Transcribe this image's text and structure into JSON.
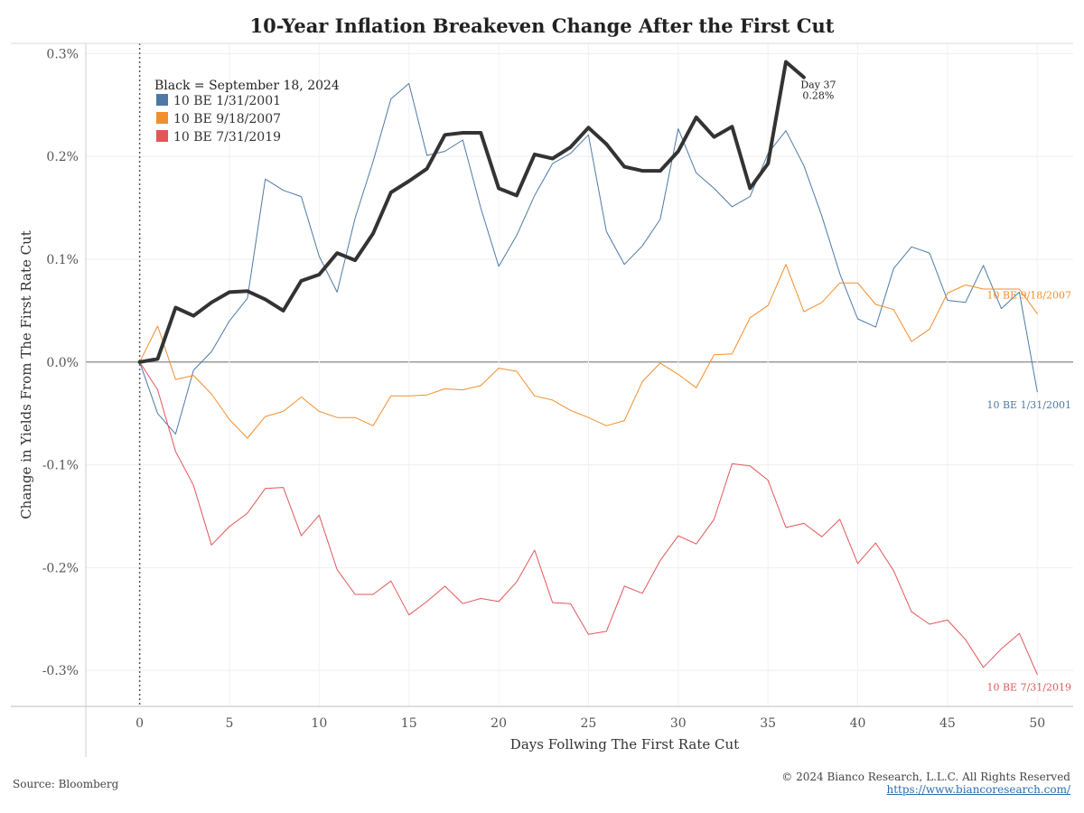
{
  "title": "10-Year Inflation Breakeven Change After the First Cut",
  "footer": {
    "source": "Source: Bloomberg",
    "copyright": "© 2024 Bianco Research, L.L.C. All Rights Reserved",
    "url": "https://www.biancoresearch.com/"
  },
  "chart_data": {
    "type": "line",
    "title": "10-Year Inflation Breakeven Change After the First Cut",
    "xlabel": "Days Follwing The First Rate Cut",
    "ylabel": "Change in Yields From The First Rate Cut",
    "xlim": [
      -3,
      52
    ],
    "ylim": [
      -0.335,
      0.31
    ],
    "xticks": [
      0,
      5,
      10,
      15,
      20,
      25,
      30,
      35,
      40,
      45,
      50
    ],
    "yticks": [
      -0.3,
      -0.2,
      -0.1,
      0.0,
      0.1,
      0.2,
      0.3
    ],
    "ytick_labels": [
      "-0.3%",
      "-0.2%",
      "-0.1%",
      "0.0%",
      "0.1%",
      "0.2%",
      "0.3%"
    ],
    "grid": true,
    "legend_title": "Black = September 18, 2024",
    "legend_position": "top-left",
    "annotation": {
      "lines": [
        "Day 37",
        "0.28%"
      ],
      "x": 37,
      "y": 0.277
    },
    "series": [
      {
        "name": "10 BE  1/31/2001",
        "end_label": "10 BE  1/31/2001",
        "color": "#4e79a7",
        "width": 1,
        "legend": true,
        "x": [
          0,
          1,
          2,
          3,
          4,
          5,
          6,
          7,
          8,
          9,
          10,
          11,
          12,
          13,
          14,
          15,
          16,
          17,
          18,
          19,
          20,
          21,
          22,
          23,
          24,
          25,
          26,
          27,
          28,
          29,
          30,
          31,
          32,
          33,
          34,
          35,
          36,
          37,
          38,
          39,
          40,
          41,
          42,
          43,
          44,
          45,
          46,
          47,
          48,
          49,
          50
        ],
        "values": [
          0,
          -0.05,
          -0.07,
          -0.008,
          0.01,
          0.04,
          0.062,
          0.178,
          0.167,
          0.161,
          0.103,
          0.068,
          0.14,
          0.195,
          0.256,
          0.271,
          0.201,
          0.205,
          0.216,
          0.15,
          0.093,
          0.123,
          0.162,
          0.193,
          0.203,
          0.221,
          0.127,
          0.095,
          0.113,
          0.139,
          0.227,
          0.184,
          0.169,
          0.151,
          0.161,
          0.203,
          0.225,
          0.191,
          0.142,
          0.086,
          0.042,
          0.034,
          0.091,
          0.112,
          0.106,
          0.06,
          0.058,
          0.094,
          0.052,
          0.068,
          -0.029
        ]
      },
      {
        "name": "10 BE  9/18/2007",
        "end_label": "10 BE  9/18/2007",
        "color": "#f28e2b",
        "width": 1,
        "legend": true,
        "x": [
          0,
          1,
          2,
          3,
          4,
          5,
          6,
          7,
          8,
          9,
          10,
          11,
          12,
          13,
          14,
          15,
          16,
          17,
          18,
          19,
          20,
          21,
          22,
          23,
          24,
          25,
          26,
          27,
          28,
          29,
          30,
          31,
          32,
          33,
          34,
          35,
          36,
          37,
          38,
          39,
          40,
          41,
          42,
          43,
          44,
          45,
          46,
          47,
          48,
          49,
          50
        ],
        "values": [
          0,
          0.035,
          -0.017,
          -0.013,
          -0.031,
          -0.056,
          -0.074,
          -0.053,
          -0.048,
          -0.034,
          -0.048,
          -0.054,
          -0.054,
          -0.062,
          -0.033,
          -0.033,
          -0.032,
          -0.026,
          -0.027,
          -0.023,
          -0.006,
          -0.009,
          -0.033,
          -0.037,
          -0.047,
          -0.054,
          -0.062,
          -0.057,
          -0.019,
          -0.001,
          -0.012,
          -0.025,
          0.007,
          0.008,
          0.043,
          0.055,
          0.095,
          0.049,
          0.058,
          0.077,
          0.077,
          0.056,
          0.051,
          0.02,
          0.032,
          0.067,
          0.075,
          0.071,
          0.071,
          0.071,
          0.047
        ]
      },
      {
        "name": "10 BE  7/31/2019",
        "end_label": "10 BE  7/31/2019",
        "color": "#e15759",
        "width": 1,
        "legend": true,
        "x": [
          0,
          1,
          2,
          3,
          4,
          5,
          6,
          7,
          8,
          9,
          10,
          11,
          12,
          13,
          14,
          15,
          16,
          17,
          18,
          19,
          20,
          21,
          22,
          23,
          24,
          25,
          26,
          27,
          28,
          29,
          30,
          31,
          32,
          33,
          34,
          35,
          36,
          37,
          38,
          39,
          40,
          41,
          42,
          43,
          44,
          45,
          46,
          47,
          48,
          49,
          50
        ],
        "values": [
          0,
          -0.027,
          -0.087,
          -0.12,
          -0.178,
          -0.16,
          -0.147,
          -0.123,
          -0.122,
          -0.169,
          -0.149,
          -0.202,
          -0.226,
          -0.226,
          -0.213,
          -0.246,
          -0.233,
          -0.218,
          -0.235,
          -0.23,
          -0.233,
          -0.214,
          -0.183,
          -0.234,
          -0.235,
          -0.265,
          -0.262,
          -0.218,
          -0.225,
          -0.193,
          -0.169,
          -0.177,
          -0.153,
          -0.099,
          -0.101,
          -0.115,
          -0.161,
          -0.157,
          -0.17,
          -0.153,
          -0.196,
          -0.176,
          -0.203,
          -0.243,
          -0.255,
          -0.251,
          -0.27,
          -0.297,
          -0.279,
          -0.264,
          -0.304
        ]
      },
      {
        "name": "",
        "color": "#333333",
        "width": 4,
        "legend": false,
        "x": [
          0,
          1,
          2,
          3,
          4,
          5,
          6,
          7,
          8,
          9,
          10,
          11,
          12,
          13,
          14,
          15,
          16,
          17,
          18,
          19,
          20,
          21,
          22,
          23,
          24,
          25,
          26,
          27,
          28,
          29,
          30,
          31,
          32,
          33,
          34,
          35,
          36,
          37
        ],
        "values": [
          0,
          0.003,
          0.053,
          0.045,
          0.058,
          0.068,
          0.069,
          0.061,
          0.05,
          0.079,
          0.085,
          0.106,
          0.099,
          0.125,
          0.165,
          0.176,
          0.188,
          0.221,
          0.223,
          0.223,
          0.169,
          0.162,
          0.202,
          0.198,
          0.209,
          0.228,
          0.212,
          0.19,
          0.186,
          0.186,
          0.205,
          0.238,
          0.219,
          0.229,
          0.169,
          0.193,
          0.292,
          0.277
        ]
      }
    ]
  }
}
